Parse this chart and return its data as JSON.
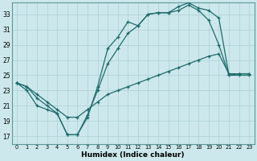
{
  "xlabel": "Humidex (Indice chaleur)",
  "background_color": "#cde8ec",
  "grid_color": "#aed4d8",
  "line_color": "#1e6b6b",
  "xlim": [
    -0.5,
    23.5
  ],
  "ylim": [
    16,
    34.5
  ],
  "yticks": [
    17,
    19,
    21,
    23,
    25,
    27,
    29,
    31,
    33
  ],
  "xticks": [
    0,
    1,
    2,
    3,
    4,
    5,
    6,
    7,
    8,
    9,
    10,
    11,
    12,
    13,
    14,
    15,
    16,
    17,
    18,
    19,
    20,
    21,
    22,
    23
  ],
  "line1_x": [
    0,
    1,
    2,
    3,
    4,
    5,
    6,
    7,
    8,
    9,
    10,
    11,
    12,
    13,
    14,
    15,
    16,
    17,
    18,
    19,
    20,
    21,
    22,
    23
  ],
  "line1_y": [
    24.0,
    23.0,
    21.0,
    20.5,
    20.0,
    17.2,
    17.2,
    19.5,
    23.5,
    28.5,
    30.0,
    32.0,
    31.5,
    33.0,
    33.2,
    33.2,
    33.5,
    34.2,
    33.5,
    32.2,
    29.0,
    25.0,
    25.0,
    25.0
  ],
  "line2_x": [
    0,
    1,
    2,
    3,
    4,
    5,
    6,
    7,
    8,
    9,
    10,
    11,
    12,
    13,
    14,
    15,
    16,
    17,
    18,
    19,
    20,
    21,
    22,
    23
  ],
  "line2_y": [
    24.0,
    23.5,
    22.0,
    21.0,
    20.0,
    17.2,
    17.2,
    19.8,
    23.0,
    26.5,
    28.5,
    30.5,
    31.5,
    33.0,
    33.2,
    33.2,
    34.0,
    34.5,
    33.8,
    33.5,
    32.5,
    25.0,
    25.2,
    25.2
  ],
  "line3_x": [
    0,
    1,
    2,
    3,
    4,
    5,
    6,
    7,
    8,
    9,
    10,
    11,
    12,
    13,
    14,
    15,
    16,
    17,
    18,
    19,
    20,
    21,
    22,
    23
  ],
  "line3_y": [
    24.0,
    23.5,
    22.5,
    21.5,
    20.5,
    19.5,
    19.5,
    20.5,
    21.5,
    22.5,
    23.0,
    23.5,
    24.0,
    24.5,
    25.0,
    25.5,
    26.0,
    26.5,
    27.0,
    27.5,
    27.8,
    25.2,
    25.2,
    25.2
  ]
}
